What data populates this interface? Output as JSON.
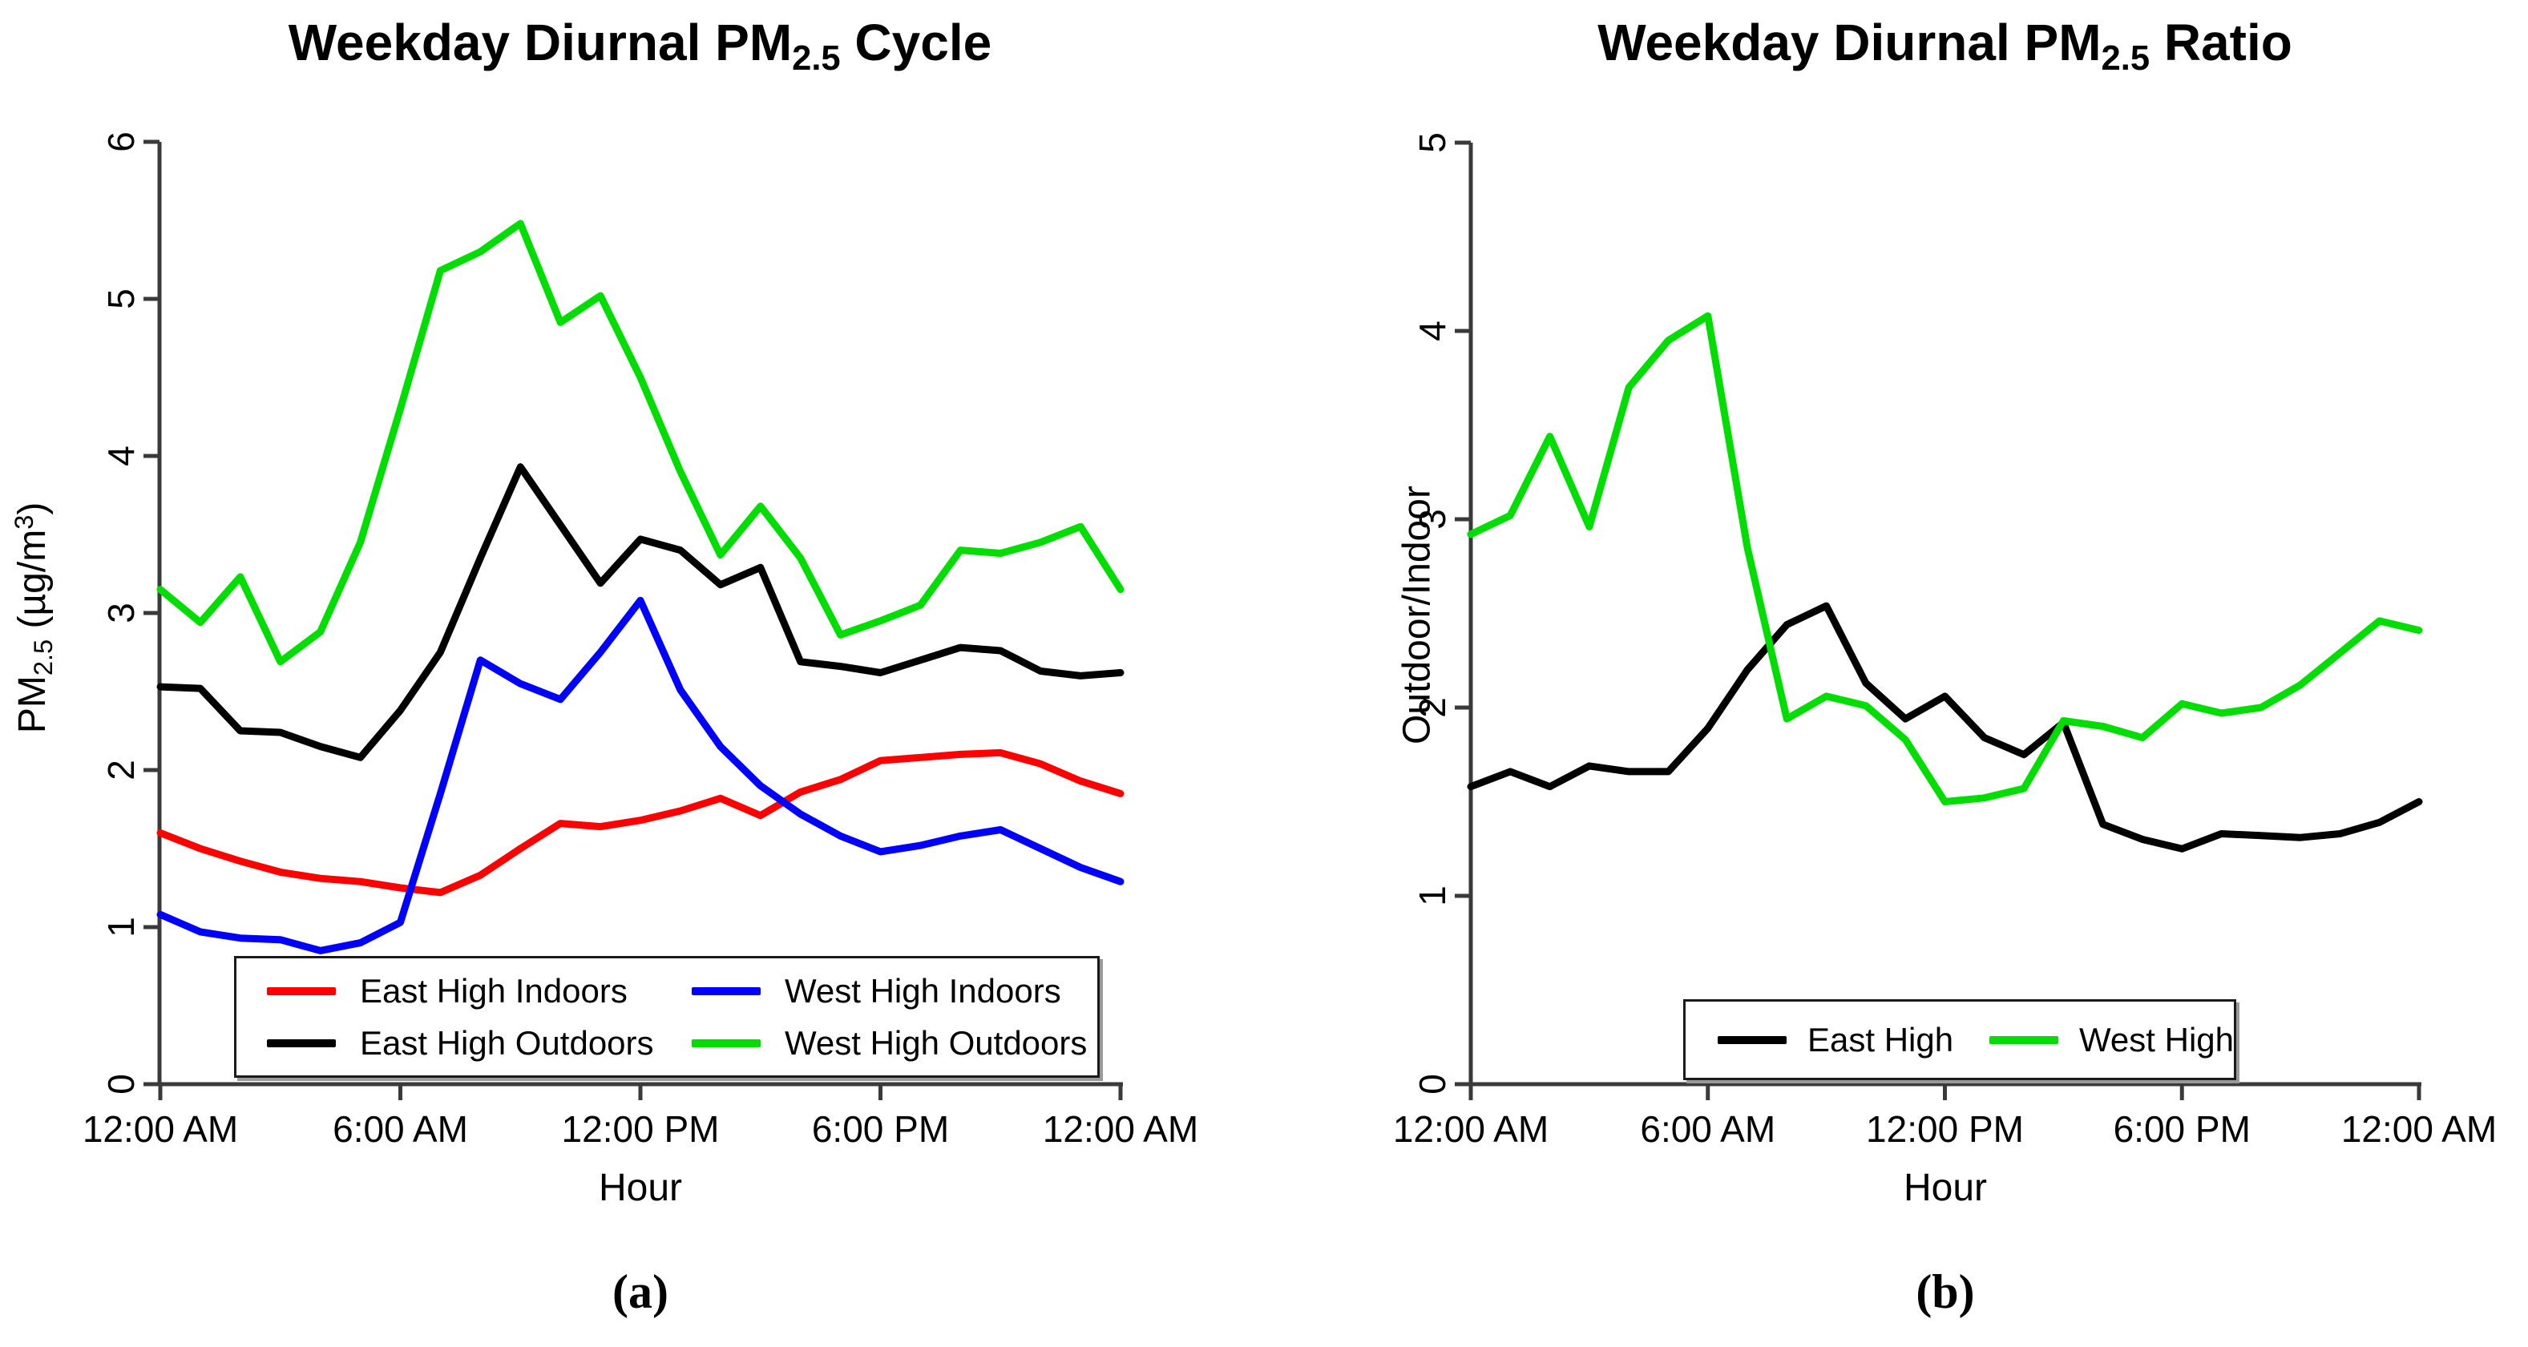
{
  "figure": {
    "background": "#ffffff",
    "captions": {
      "a": "(a)",
      "b": "(b)"
    }
  },
  "chart_data": [
    {
      "type": "line",
      "title": "Weekday Diurnal PM2.5 Cycle",
      "title_parts": {
        "p1": "Weekday Diurnal PM",
        "sub": "2.5",
        "p2": " Cycle"
      },
      "xlabel": "Hour",
      "ylabel": "PM2.5 (µg/m³)",
      "ylabel_parts": {
        "p1": "PM",
        "sub": "2.5",
        "p2": " (µg/m",
        "sup": "3",
        "p3": ")"
      },
      "caption": "(a)",
      "ylim": [
        0,
        6
      ],
      "y_ticks": [
        0,
        1,
        2,
        3,
        4,
        5,
        6
      ],
      "x_hours_range": [
        0,
        24
      ],
      "x_tick_hours": [
        0,
        6,
        12,
        18,
        24
      ],
      "x_tick_labels": [
        "12:00 AM",
        "6:00 AM",
        "12:00 PM",
        "6:00 PM",
        "12:00 AM"
      ],
      "grid": false,
      "legend_position": "bottom-inside",
      "series": [
        {
          "name": "East High Indoors",
          "color": "#FF0000",
          "values": [
            1.6,
            1.5,
            1.42,
            1.35,
            1.31,
            1.29,
            1.25,
            1.22,
            1.33,
            1.5,
            1.66,
            1.64,
            1.68,
            1.74,
            1.82,
            1.71,
            1.86,
            1.94,
            2.06,
            2.08,
            2.1,
            2.11,
            2.04,
            1.93,
            1.85
          ]
        },
        {
          "name": "East High Outdoors",
          "color": "#000000",
          "values": [
            2.53,
            2.52,
            2.25,
            2.24,
            2.15,
            2.08,
            2.38,
            2.75,
            3.35,
            3.93,
            3.56,
            3.19,
            3.47,
            3.4,
            3.18,
            3.29,
            2.69,
            2.66,
            2.62,
            2.7,
            2.78,
            2.76,
            2.63,
            2.6,
            2.62
          ]
        },
        {
          "name": "West High Indoors",
          "color": "#0000FF",
          "values": [
            1.08,
            0.97,
            0.93,
            0.92,
            0.85,
            0.9,
            1.03,
            1.85,
            2.7,
            2.55,
            2.45,
            2.75,
            3.08,
            2.51,
            2.15,
            1.9,
            1.72,
            1.58,
            1.48,
            1.52,
            1.58,
            1.62,
            1.5,
            1.38,
            1.29
          ]
        },
        {
          "name": "West High Outdoors",
          "color": "#00DD00",
          "values": [
            3.15,
            2.94,
            3.23,
            2.69,
            2.88,
            3.45,
            4.3,
            5.18,
            5.3,
            5.48,
            4.85,
            5.02,
            4.5,
            3.9,
            3.37,
            3.68,
            3.35,
            2.86,
            2.95,
            3.05,
            3.4,
            3.38,
            3.45,
            3.55,
            3.15
          ]
        }
      ]
    },
    {
      "type": "line",
      "title": "Weekday Diurnal PM2.5 Ratio",
      "title_parts": {
        "p1": "Weekday Diurnal PM",
        "sub": "2.5",
        "p2": " Ratio"
      },
      "xlabel": "Hour",
      "ylabel": "Outdoor/Indoor",
      "ylabel_parts": {
        "p1": "Outdoor/Indoor",
        "sub": "",
        "p2": "",
        "sup": "",
        "p3": ""
      },
      "caption": "(b)",
      "ylim": [
        0,
        5
      ],
      "y_ticks": [
        0,
        1,
        2,
        3,
        4,
        5
      ],
      "x_hours_range": [
        0,
        24
      ],
      "x_tick_hours": [
        0,
        6,
        12,
        18,
        24
      ],
      "x_tick_labels": [
        "12:00 AM",
        "6:00 AM",
        "12:00 PM",
        "6:00 PM",
        "12:00 AM"
      ],
      "grid": false,
      "legend_position": "bottom-inside",
      "series": [
        {
          "name": "East High",
          "color": "#000000",
          "values": [
            1.58,
            1.66,
            1.58,
            1.69,
            1.66,
            1.66,
            1.89,
            2.2,
            2.44,
            2.54,
            2.13,
            1.94,
            2.06,
            1.84,
            1.75,
            1.92,
            1.38,
            1.3,
            1.25,
            1.33,
            1.32,
            1.31,
            1.33,
            1.39,
            1.5
          ]
        },
        {
          "name": "West High",
          "color": "#00DD00",
          "values": [
            2.92,
            3.02,
            3.44,
            2.96,
            3.7,
            3.95,
            4.08,
            2.85,
            1.94,
            2.06,
            2.01,
            1.83,
            1.5,
            1.52,
            1.57,
            1.93,
            1.9,
            1.84,
            2.02,
            1.97,
            2.0,
            2.12,
            2.29,
            2.46,
            2.41
          ]
        }
      ]
    }
  ]
}
